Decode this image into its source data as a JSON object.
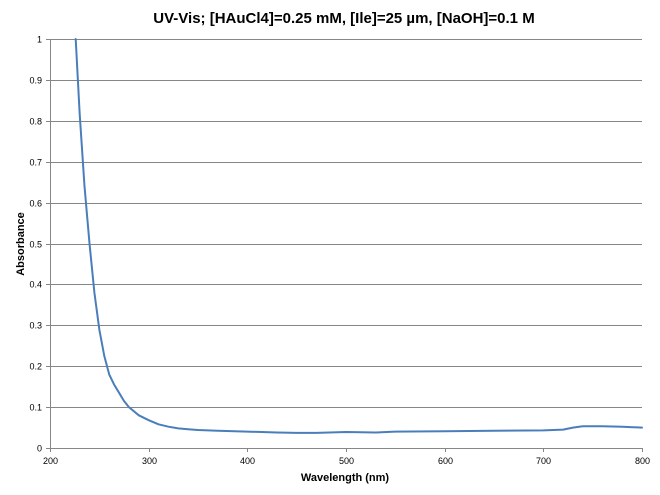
{
  "chart_data": {
    "type": "line",
    "title": "UV-Vis; [HAuCl4]=0.25 mM, [Ile]=25 µm, [NaOH]=0.1 M",
    "xlabel": "Wavelength (nm)",
    "ylabel": "Absorbance",
    "xlim": [
      200,
      800
    ],
    "ylim": [
      0,
      1
    ],
    "xticks": [
      200,
      300,
      400,
      500,
      600,
      700,
      800
    ],
    "yticks": [
      0,
      0.1,
      0.2,
      0.3,
      0.4,
      0.5,
      0.6,
      0.7,
      0.8,
      0.9,
      1
    ],
    "ytick_labels": [
      "0",
      "0.1",
      "0.2",
      "0.3",
      "0.4",
      "0.5",
      "0.6",
      "0.7",
      "0.8",
      "0.9",
      "1"
    ],
    "grid": true,
    "legend": "none",
    "line_color": "#4a7ebb",
    "series": [
      {
        "x": [
          226,
          230,
          235,
          240,
          245,
          250,
          255,
          260,
          265,
          270,
          275,
          280,
          290,
          300,
          310,
          320,
          330,
          340,
          350,
          370,
          400,
          430,
          450,
          470,
          500,
          530,
          550,
          600,
          650,
          700,
          720,
          730,
          740,
          760,
          780,
          800
        ],
        "y": [
          1.0,
          0.82,
          0.64,
          0.5,
          0.38,
          0.29,
          0.225,
          0.18,
          0.155,
          0.135,
          0.115,
          0.1,
          0.08,
          0.068,
          0.058,
          0.052,
          0.048,
          0.046,
          0.044,
          0.042,
          0.04,
          0.038,
          0.037,
          0.037,
          0.039,
          0.038,
          0.04,
          0.041,
          0.042,
          0.043,
          0.045,
          0.05,
          0.053,
          0.053,
          0.052,
          0.05
        ]
      }
    ]
  }
}
